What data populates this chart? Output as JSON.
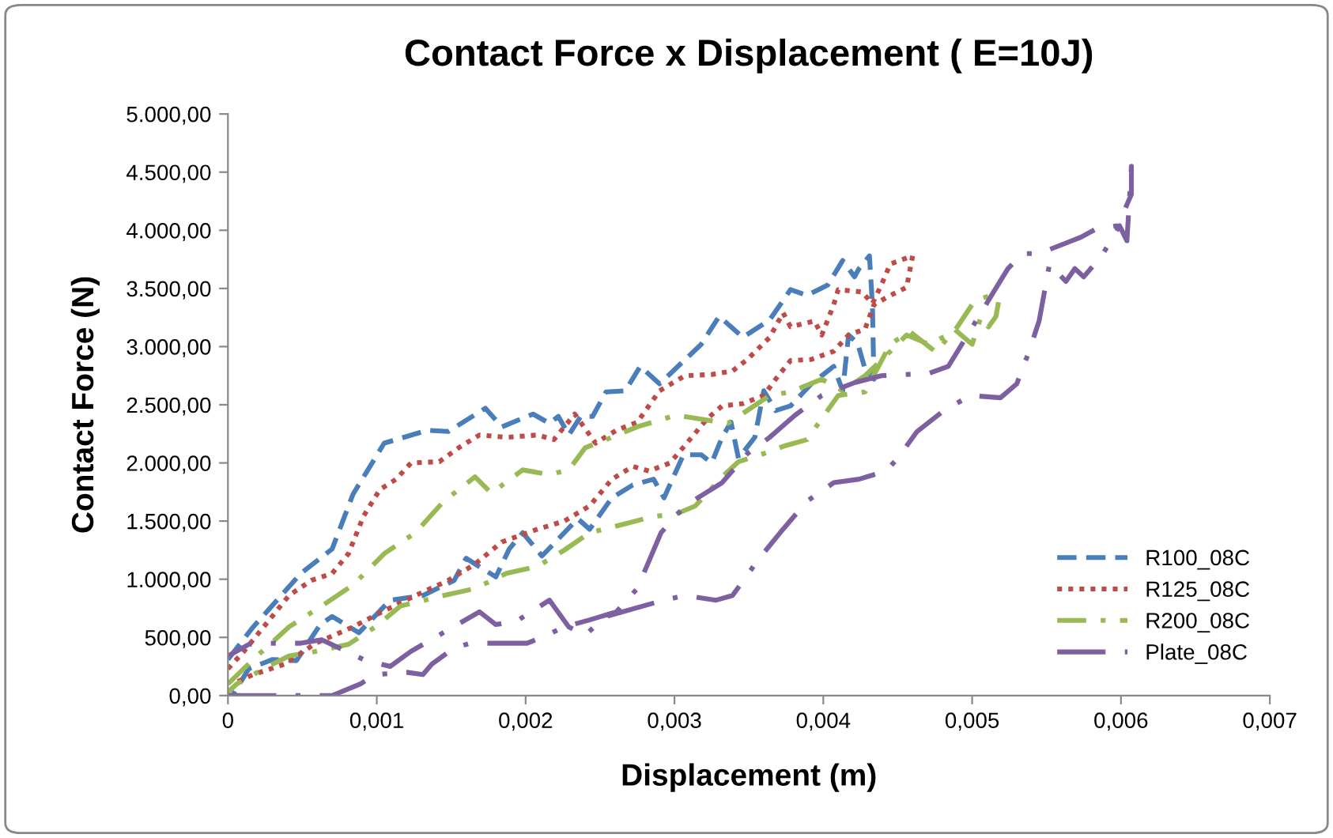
{
  "chart_data": {
    "type": "line",
    "title": "Contact Force x Displacement ( E=10J)",
    "xlabel": "Displacement (m)",
    "ylabel": "Contact Force (N)",
    "xlim": [
      0,
      0.007
    ],
    "xticks": [
      0,
      {
        "value": 0.001,
        "label": "0,001"
      },
      {
        "value": 0.002,
        "label": "0,002"
      },
      {
        "value": 0.003,
        "label": "0,003"
      },
      {
        "value": 0.004,
        "label": "0,004"
      },
      {
        "value": 0.005,
        "label": "0,005"
      },
      {
        "value": 0.006,
        "label": "0,006"
      },
      {
        "value": 0.007,
        "label": "0,007"
      }
    ],
    "ylim": [
      0,
      5000
    ],
    "yticks": [
      {
        "value": 0,
        "label": "0,00"
      },
      {
        "value": 500,
        "label": "500,00"
      },
      {
        "value": 1000,
        "label": "1.000,00"
      },
      {
        "value": 1500,
        "label": "1.500,00"
      },
      {
        "value": 2000,
        "label": "2.000,00"
      },
      {
        "value": 2500,
        "label": "2.500,00"
      },
      {
        "value": 3000,
        "label": "3.000,00"
      },
      {
        "value": 3500,
        "label": "3.500,00"
      },
      {
        "value": 4000,
        "label": "4.000,00"
      },
      {
        "value": 4500,
        "label": "4.500,00"
      },
      {
        "value": 5000,
        "label": "5.000,00"
      }
    ],
    "grid": false,
    "legend": "right",
    "marker": "none",
    "series": [
      {
        "name": "R100_08C",
        "color": "#4a7ebb",
        "line_style": "dashed",
        "x": [
          0,
          0.00017,
          0.00049,
          0.0007,
          0.00084,
          0.00105,
          0.00134,
          0.00148,
          0.00173,
          0.00184,
          0.00205,
          0.00216,
          0.00222,
          0.00229,
          0.00237,
          0.00245,
          0.00254,
          0.00267,
          0.00277,
          0.0029,
          0.00318,
          0.0033,
          0.00346,
          0.00364,
          0.00378,
          0.00389,
          0.00403,
          0.00413,
          0.00421,
          0.00424,
          0.00431,
          0.00433,
          0.00434,
          0.00428,
          0.00423,
          0.00417,
          0.00413,
          0.00407,
          0.00392,
          0.00378,
          0.00368,
          0.0036,
          0.00354,
          0.00343,
          0.00338,
          0.00332,
          0.00325,
          0.00318,
          0.00306,
          0.00293,
          0.00286,
          0.00272,
          0.00258,
          0.00243,
          0.00235,
          0.00211,
          0.00198,
          0.00189,
          0.0018,
          0.0016,
          0.00152,
          0.00131,
          0.00109,
          0.00088,
          0.0007,
          0.00062,
          0.00046,
          0.0003,
          0.00014,
          3e-05
        ],
        "values": [
          310,
          590,
          1050,
          1260,
          1730,
          2170,
          2280,
          2270,
          2470,
          2310,
          2420,
          2340,
          2400,
          2240,
          2400,
          2400,
          2610,
          2620,
          2830,
          2680,
          3020,
          3260,
          3080,
          3230,
          3490,
          3440,
          3530,
          3740,
          3600,
          3670,
          3780,
          3360,
          2720,
          2810,
          3030,
          3100,
          2620,
          2830,
          2680,
          2490,
          2450,
          2620,
          2220,
          2040,
          2350,
          2220,
          2000,
          2070,
          2070,
          1700,
          1860,
          1810,
          1700,
          1430,
          1520,
          1200,
          1400,
          1260,
          1020,
          1180,
          990,
          860,
          820,
          540,
          680,
          610,
          300,
          310,
          230,
          0
        ]
      },
      {
        "name": "R125_08C",
        "color": "#be4b48",
        "line_style": "dotted",
        "x": [
          0,
          0.0001,
          0.00024,
          0.00041,
          0.00056,
          0.0007,
          0.00081,
          0.00091,
          0.00102,
          0.00113,
          0.00123,
          0.00142,
          0.00155,
          0.00169,
          0.00187,
          0.00208,
          0.00219,
          0.00233,
          0.00247,
          0.00261,
          0.00275,
          0.0029,
          0.00307,
          0.00325,
          0.00339,
          0.00349,
          0.00364,
          0.00373,
          0.00378,
          0.00394,
          0.00399,
          0.00407,
          0.0041,
          0.00426,
          0.00433,
          0.00439,
          0.00445,
          0.0046,
          0.00456,
          0.00445,
          0.00434,
          0.00428,
          0.00417,
          0.00407,
          0.00392,
          0.00378,
          0.00368,
          0.0036,
          0.00346,
          0.00332,
          0.00322,
          0.00307,
          0.00297,
          0.00283,
          0.00272,
          0.00258,
          0.00243,
          0.00226,
          0.00208,
          0.00184,
          0.00166,
          0.00148,
          0.00126,
          0.00102,
          0.00084,
          0.00059,
          0.00038,
          0.00017,
          3e-05
        ],
        "values": [
          230,
          370,
          590,
          860,
          990,
          1050,
          1220,
          1540,
          1770,
          1860,
          2000,
          2010,
          2130,
          2240,
          2220,
          2240,
          2200,
          2420,
          2170,
          2280,
          2350,
          2620,
          2750,
          2760,
          2790,
          2890,
          3080,
          3290,
          3170,
          3220,
          3100,
          3360,
          3490,
          3470,
          3370,
          3530,
          3710,
          3780,
          3510,
          3440,
          3360,
          3150,
          3100,
          2960,
          2890,
          2880,
          2720,
          2580,
          2510,
          2490,
          2380,
          2150,
          2000,
          1930,
          1970,
          1860,
          1630,
          1500,
          1430,
          1320,
          1130,
          990,
          860,
          710,
          590,
          450,
          270,
          180,
          100
        ]
      },
      {
        "name": "R200_08C",
        "color": "#98b954",
        "line_style": "dashdot",
        "x": [
          0,
          0.00017,
          0.00041,
          0.00063,
          0.00084,
          0.00105,
          0.00126,
          0.00145,
          0.00166,
          0.00177,
          0.00198,
          0.00216,
          0.00229,
          0.0024,
          0.00258,
          0.00275,
          0.00301,
          0.00336,
          0.00364,
          0.00378,
          0.00399,
          0.00413,
          0.00428,
          0.00442,
          0.00456,
          0.00471,
          0.00488,
          0.00502,
          0.00513,
          0.00518,
          0.00516,
          0.00511,
          0.00506,
          0.005,
          0.00488,
          0.00476,
          0.00468,
          0.00458,
          0.00445,
          0.00428,
          0.0041,
          0.00389,
          0.00375,
          0.0036,
          0.00343,
          0.00332,
          0.00314,
          0.00301,
          0.00286,
          0.00265,
          0.00243,
          0.00226,
          0.00208,
          0.00187,
          0.00166,
          0.00145,
          0.00116,
          0.00099,
          0.00081,
          0.00059,
          0.00041,
          0.00024,
          6e-05,
          0
        ],
        "values": [
          100,
          310,
          590,
          770,
          950,
          1220,
          1400,
          1670,
          1880,
          1740,
          1940,
          1900,
          1940,
          2130,
          2220,
          2310,
          2410,
          2340,
          2580,
          2610,
          2720,
          2620,
          2750,
          2920,
          3100,
          3020,
          3130,
          3400,
          3440,
          3400,
          3260,
          3170,
          3260,
          3020,
          3150,
          2950,
          3030,
          3130,
          3020,
          2610,
          2580,
          2200,
          2150,
          2080,
          2010,
          1880,
          1630,
          1560,
          1540,
          1470,
          1400,
          1250,
          1110,
          1050,
          920,
          860,
          770,
          590,
          440,
          380,
          340,
          230,
          100,
          30
        ]
      },
      {
        "name": "Plate_08C",
        "color": "#7d60a0",
        "line_style": "longdashdot",
        "x": [
          0,
          0.0007,
          0.00089,
          0.00099,
          0.0012,
          0.00131,
          0.00137,
          0.00152,
          0.00163,
          0.0018,
          0.00201,
          0.00211,
          0.00226,
          0.00243,
          0.00261,
          0.00275,
          0.00291,
          0.00307,
          0.00332,
          0.00349,
          0.00364,
          0.00381,
          0.00399,
          0.00421,
          0.00439,
          0.00471,
          0.00484,
          0.00495,
          0.00506,
          0.00513,
          0.00524,
          0.00534,
          0.00545,
          0.00573,
          0.00583,
          0.00598,
          0.00607,
          0.00607,
          0.00604,
          0.00599,
          0.00596,
          0.00587,
          0.00575,
          0.00569,
          0.00563,
          0.00552,
          0.00545,
          0.00538,
          0.0053,
          0.00519,
          0.00499,
          0.00481,
          0.00463,
          0.0045,
          0.00442,
          0.00424,
          0.00407,
          0.00389,
          0.00371,
          0.00357,
          0.00339,
          0.00328,
          0.00307,
          0.00293,
          0.00254,
          0.0024,
          0.00229,
          0.00216,
          0.00194,
          0.0018,
          0.00169,
          0.00123,
          0.00109,
          0.00091,
          0.00063,
          0.00049,
          0.00028,
          0.00014,
          0
        ],
        "values": [
          0,
          0,
          100,
          180,
          200,
          180,
          270,
          410,
          450,
          450,
          450,
          500,
          590,
          650,
          720,
          920,
          1400,
          1630,
          1830,
          2080,
          2220,
          2410,
          2580,
          2690,
          2750,
          2770,
          2830,
          3060,
          3290,
          3440,
          3670,
          3800,
          3800,
          3940,
          4010,
          4040,
          4310,
          4550,
          3910,
          4040,
          3970,
          3780,
          3600,
          3670,
          3560,
          3710,
          3220,
          2950,
          2680,
          2560,
          2580,
          2450,
          2270,
          2040,
          1930,
          1860,
          1830,
          1670,
          1400,
          1180,
          860,
          820,
          860,
          820,
          680,
          520,
          590,
          820,
          640,
          610,
          720,
          380,
          250,
          310,
          480,
          450,
          450,
          440,
          340
        ]
      }
    ]
  }
}
